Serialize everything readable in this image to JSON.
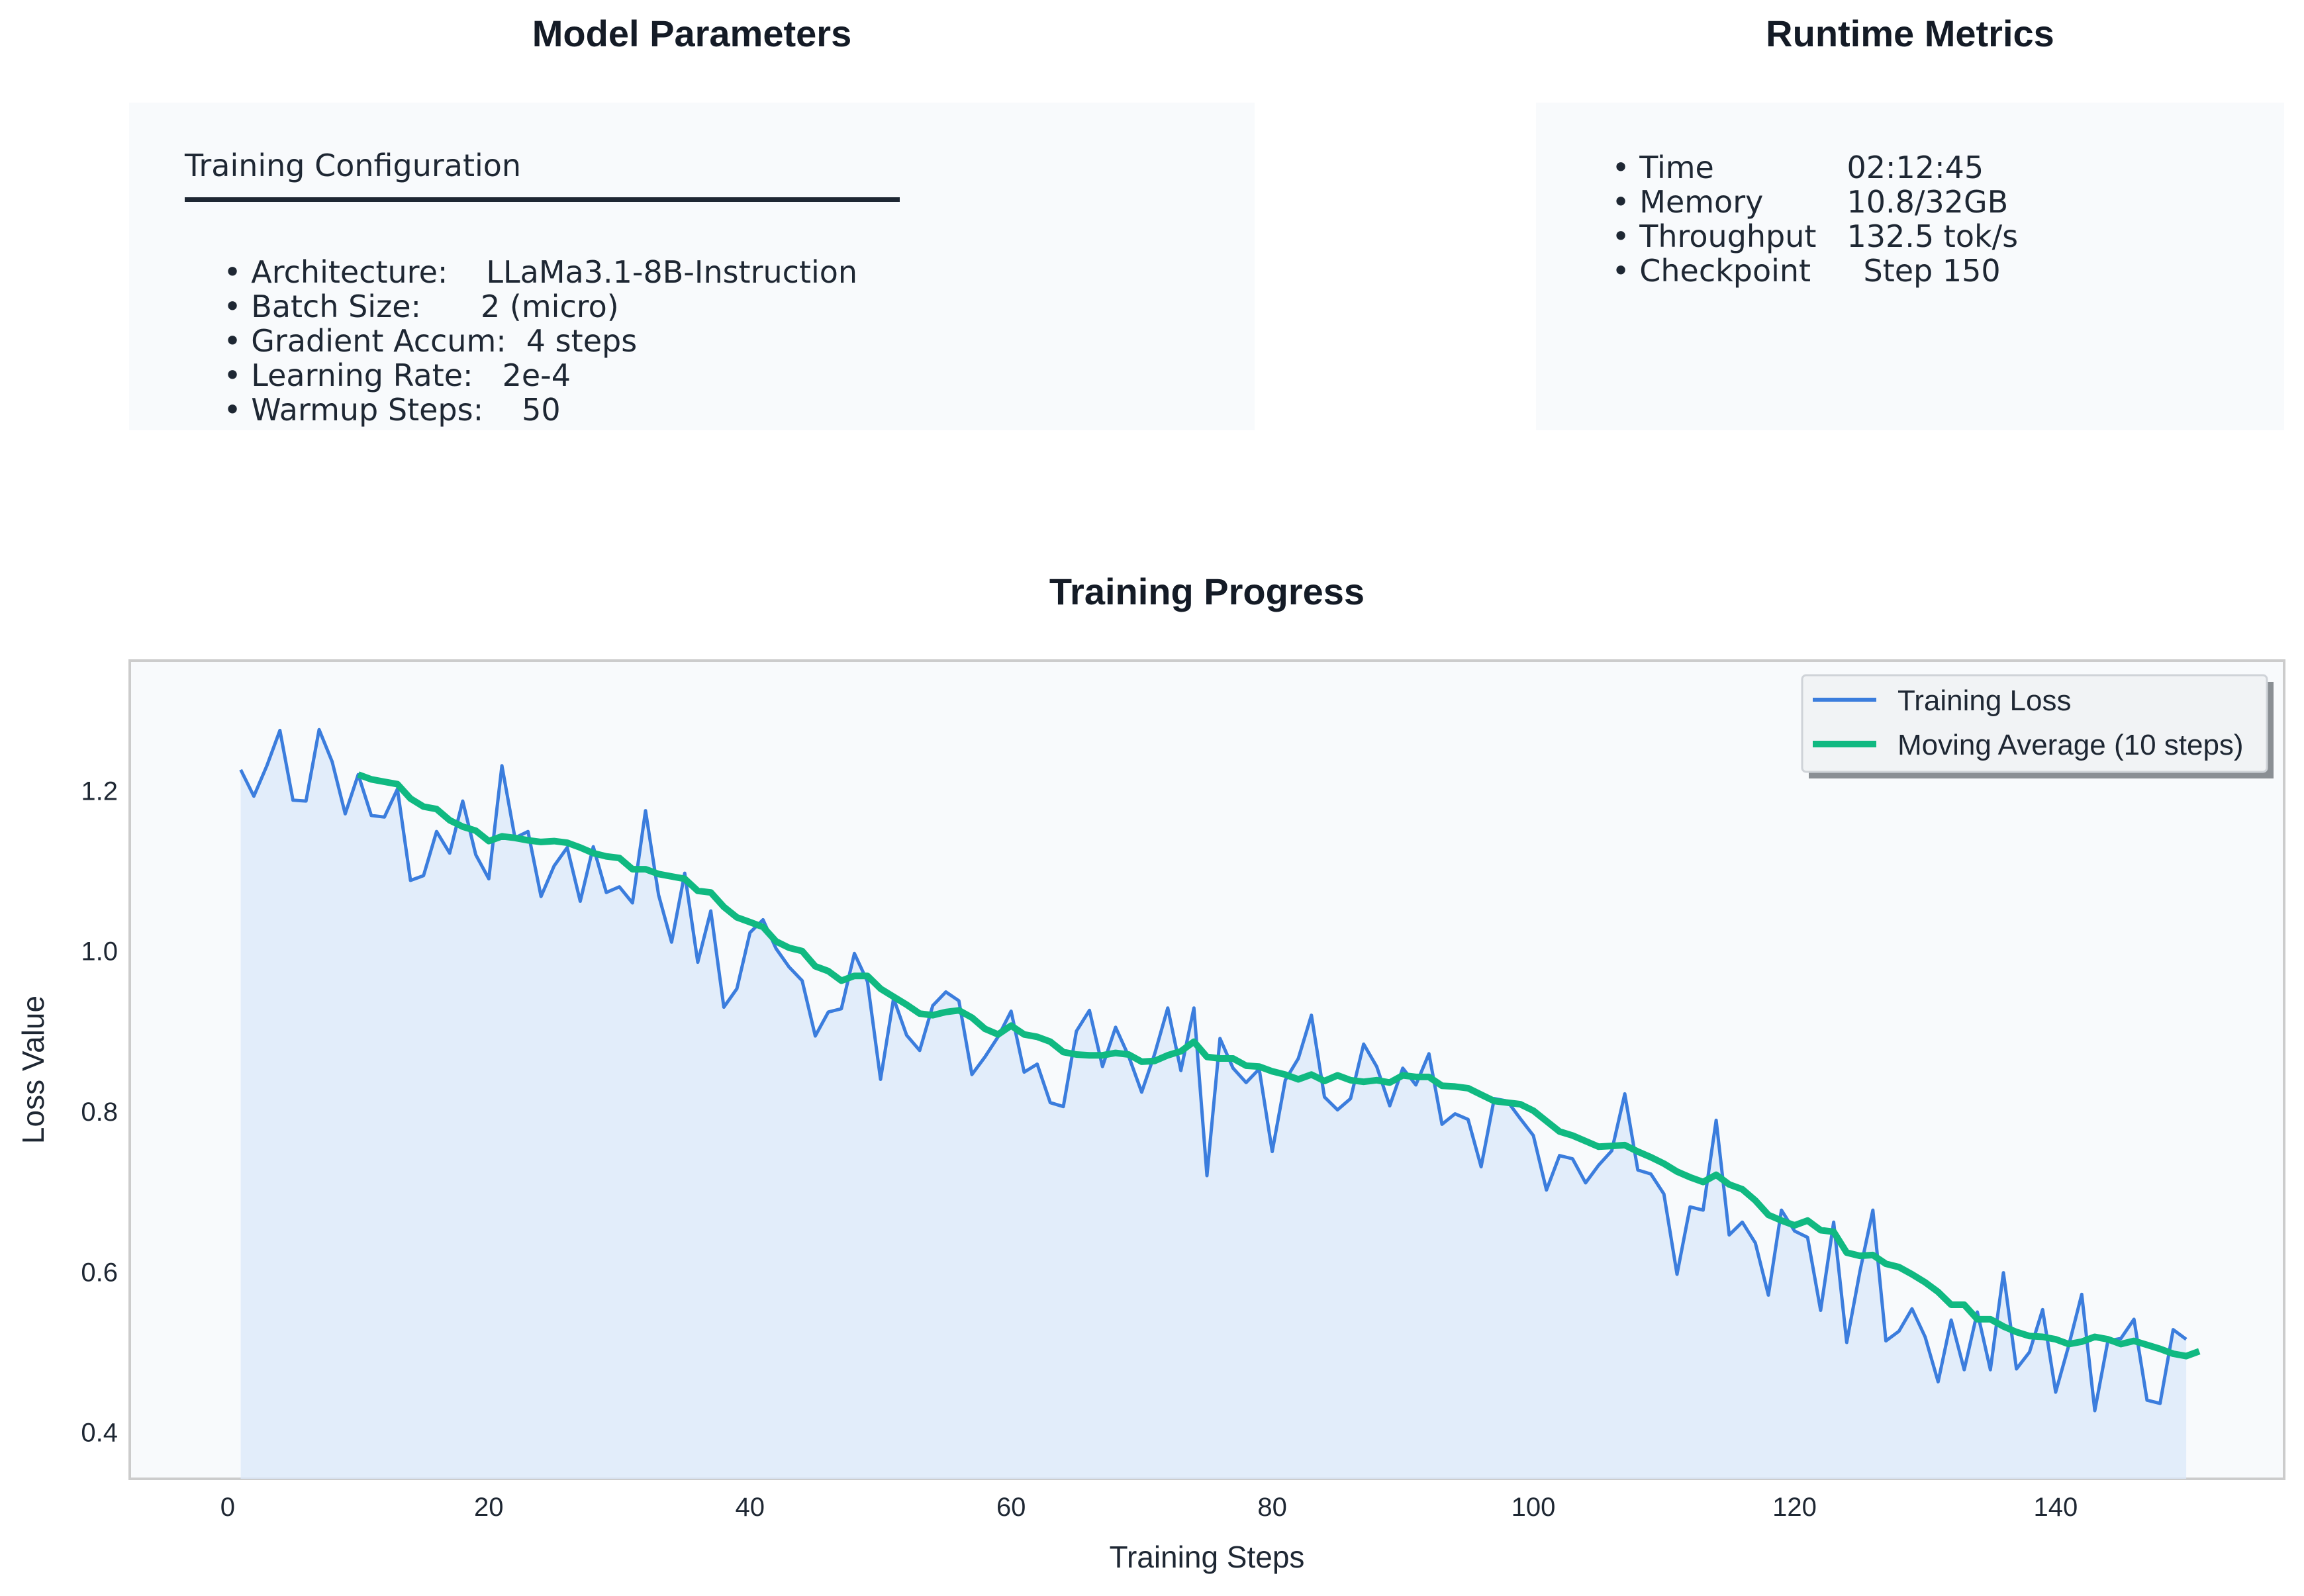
{
  "model_parameters": {
    "heading": "Model Parameters",
    "subtitle": "Training Configuration",
    "items": [
      {
        "label": "• Architecture:",
        "value": "LLaMa3.1-8B-Instruction"
      },
      {
        "label": "• Batch Size:",
        "value": "2 (micro)"
      },
      {
        "label": "• Gradient Accum:",
        "value": "4 steps"
      },
      {
        "label": "• Learning Rate:",
        "value": "2e-4"
      },
      {
        "label": "• Warmup Steps:",
        "value": "50"
      }
    ]
  },
  "runtime_metrics": {
    "heading": "Runtime Metrics",
    "items": [
      {
        "label": "• Time",
        "value": "02:12:45"
      },
      {
        "label": "• Memory",
        "value": "10.8/32GB"
      },
      {
        "label": "• Throughput",
        "value": "132.5 tok/s"
      },
      {
        "label": "• Checkpoint",
        "value": "Step 150"
      }
    ]
  },
  "chart_data": {
    "type": "line",
    "title": "Training Progress",
    "xlabel": "Training Steps",
    "ylabel": "Loss Value",
    "xlim": [
      -7.5,
      157.5
    ],
    "ylim": [
      0.342,
      1.362
    ],
    "xticks": [
      0,
      20,
      40,
      60,
      80,
      100,
      120,
      140
    ],
    "yticks": [
      0.4,
      0.6,
      0.8,
      1.0,
      1.2
    ],
    "xtick_labels": [
      "0",
      "20",
      "40",
      "60",
      "80",
      "100",
      "120",
      "140"
    ],
    "ytick_labels": [
      "0.4",
      "0.6",
      "0.8",
      "1.0",
      "1.2"
    ],
    "grid": false,
    "legend_position": "top-right",
    "colors": {
      "loss": "#3b7ddd",
      "avg": "#10b981",
      "fill": "#dbe8f9",
      "axes_bg": "#f8fafc",
      "axes_border": "#cccccc"
    },
    "series": [
      {
        "name": "Training Loss",
        "x_start": 1,
        "values": [
          1.226,
          1.193,
          1.231,
          1.275,
          1.188,
          1.187,
          1.276,
          1.236,
          1.171,
          1.22,
          1.169,
          1.167,
          1.202,
          1.088,
          1.094,
          1.149,
          1.122,
          1.187,
          1.12,
          1.09,
          1.231,
          1.141,
          1.149,
          1.068,
          1.106,
          1.129,
          1.062,
          1.13,
          1.073,
          1.08,
          1.06,
          1.175,
          1.07,
          1.011,
          1.097,
          0.986,
          1.05,
          0.93,
          0.953,
          1.023,
          1.039,
          1.003,
          0.98,
          0.963,
          0.894,
          0.924,
          0.928,
          0.997,
          0.962,
          0.84,
          0.941,
          0.895,
          0.876,
          0.932,
          0.949,
          0.938,
          0.846,
          0.868,
          0.893,
          0.925,
          0.849,
          0.859,
          0.811,
          0.806,
          0.9,
          0.926,
          0.856,
          0.905,
          0.869,
          0.824,
          0.872,
          0.929,
          0.851,
          0.929,
          0.72,
          0.891,
          0.854,
          0.836,
          0.853,
          0.75,
          0.839,
          0.866,
          0.92,
          0.818,
          0.802,
          0.816,
          0.884,
          0.856,
          0.807,
          0.854,
          0.833,
          0.872,
          0.784,
          0.797,
          0.79,
          0.731,
          0.816,
          0.813,
          0.791,
          0.77,
          0.702,
          0.745,
          0.741,
          0.711,
          0.733,
          0.751,
          0.822,
          0.727,
          0.722,
          0.697,
          0.597,
          0.681,
          0.677,
          0.789,
          0.646,
          0.662,
          0.636,
          0.571,
          0.677,
          0.651,
          0.643,
          0.552,
          0.662,
          0.512,
          0.6,
          0.677,
          0.514,
          0.526,
          0.554,
          0.519,
          0.463,
          0.54,
          0.478,
          0.55,
          0.478,
          0.599,
          0.479,
          0.5,
          0.553,
          0.45,
          0.508,
          0.572,
          0.427,
          0.514,
          0.517,
          0.541,
          0.44,
          0.436,
          0.528,
          0.516
        ]
      },
      {
        "name": "Moving Average (10 steps)",
        "x_start": 10,
        "values": [
          1.22,
          1.214,
          1.211,
          1.208,
          1.19,
          1.18,
          1.177,
          1.163,
          1.155,
          1.15,
          1.137,
          1.143,
          1.141,
          1.138,
          1.136,
          1.137,
          1.135,
          1.129,
          1.122,
          1.118,
          1.116,
          1.102,
          1.102,
          1.096,
          1.093,
          1.09,
          1.075,
          1.073,
          1.055,
          1.042,
          1.036,
          1.03,
          1.012,
          1.004,
          1.0,
          0.981,
          0.975,
          0.963,
          0.969,
          0.969,
          0.953,
          0.943,
          0.933,
          0.922,
          0.92,
          0.924,
          0.926,
          0.917,
          0.903,
          0.896,
          0.907,
          0.896,
          0.893,
          0.887,
          0.874,
          0.871,
          0.87,
          0.87,
          0.873,
          0.871,
          0.862,
          0.863,
          0.87,
          0.875,
          0.887,
          0.868,
          0.866,
          0.866,
          0.857,
          0.856,
          0.85,
          0.846,
          0.84,
          0.846,
          0.838,
          0.845,
          0.839,
          0.837,
          0.839,
          0.836,
          0.845,
          0.843,
          0.843,
          0.832,
          0.831,
          0.829,
          0.821,
          0.813,
          0.811,
          0.809,
          0.801,
          0.788,
          0.775,
          0.77,
          0.763,
          0.756,
          0.757,
          0.758,
          0.75,
          0.743,
          0.735,
          0.725,
          0.718,
          0.712,
          0.721,
          0.709,
          0.703,
          0.689,
          0.671,
          0.664,
          0.658,
          0.664,
          0.652,
          0.65,
          0.624,
          0.62,
          0.621,
          0.61,
          0.606,
          0.597,
          0.587,
          0.575,
          0.559,
          0.559,
          0.541,
          0.541,
          0.532,
          0.525,
          0.52,
          0.519,
          0.516,
          0.51,
          0.513,
          0.519,
          0.516,
          0.51,
          0.514,
          0.509,
          0.504,
          0.498,
          0.495,
          0.501
        ]
      }
    ]
  }
}
